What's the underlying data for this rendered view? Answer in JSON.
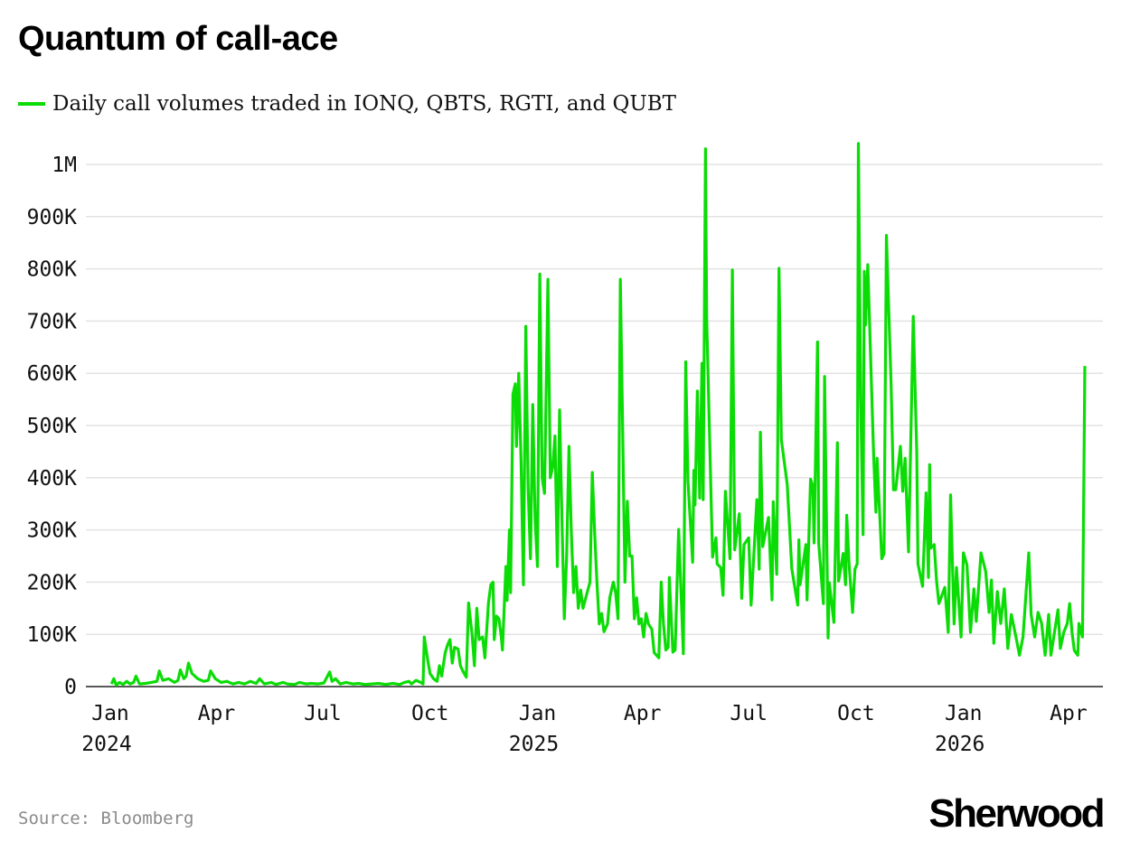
{
  "title": "Quantum of call-ace",
  "source": "Source: Bloomberg",
  "logo": "Sherwood",
  "chart_data": {
    "type": "line",
    "title": "Quantum of call-ace",
    "xlabel": "",
    "ylabel": "",
    "x_units": "days since 2024-01-01",
    "y_units": "thousands of contracts",
    "ylim": [
      0,
      1000
    ],
    "xlim": [
      -20,
      850
    ],
    "grid": true,
    "legend_position": "top-left",
    "color": "#0bdc06",
    "yticks": [
      {
        "value": 0,
        "label": "0"
      },
      {
        "value": 100,
        "label": "100K"
      },
      {
        "value": 200,
        "label": "200K"
      },
      {
        "value": 300,
        "label": "300K"
      },
      {
        "value": 400,
        "label": "400K"
      },
      {
        "value": 500,
        "label": "500K"
      },
      {
        "value": 600,
        "label": "600K"
      },
      {
        "value": 700,
        "label": "700K"
      },
      {
        "value": 800,
        "label": "800K"
      },
      {
        "value": 900,
        "label": "900K"
      },
      {
        "value": 1000,
        "label": "1M"
      }
    ],
    "xticks": [
      {
        "value": 0,
        "label": "Jan",
        "year": "2024"
      },
      {
        "value": 91,
        "label": "Apr",
        "year": ""
      },
      {
        "value": 182,
        "label": "Jul",
        "year": ""
      },
      {
        "value": 274,
        "label": "Oct",
        "year": ""
      },
      {
        "value": 366,
        "label": "Jan",
        "year": "2025"
      },
      {
        "value": 456,
        "label": "Apr",
        "year": ""
      },
      {
        "value": 547,
        "label": "Jul",
        "year": ""
      },
      {
        "value": 639,
        "label": "Oct",
        "year": ""
      },
      {
        "value": 731,
        "label": "Jan",
        "year": "2026"
      },
      {
        "value": 821,
        "label": "Apr",
        "year": ""
      }
    ],
    "series": [
      {
        "name": "Daily call volumes traded in IONQ, QBTS, RGTI, and QUBT",
        "points": [
          [
            1,
            5
          ],
          [
            3,
            15
          ],
          [
            5,
            3
          ],
          [
            8,
            8
          ],
          [
            11,
            4
          ],
          [
            14,
            10
          ],
          [
            17,
            5
          ],
          [
            20,
            8
          ],
          [
            22,
            20
          ],
          [
            25,
            5
          ],
          [
            30,
            6
          ],
          [
            35,
            8
          ],
          [
            40,
            10
          ],
          [
            42,
            30
          ],
          [
            45,
            12
          ],
          [
            50,
            15
          ],
          [
            55,
            8
          ],
          [
            58,
            12
          ],
          [
            60,
            32
          ],
          [
            63,
            15
          ],
          [
            65,
            20
          ],
          [
            67,
            45
          ],
          [
            70,
            25
          ],
          [
            75,
            15
          ],
          [
            80,
            10
          ],
          [
            84,
            12
          ],
          [
            86,
            30
          ],
          [
            90,
            15
          ],
          [
            95,
            8
          ],
          [
            100,
            10
          ],
          [
            105,
            5
          ],
          [
            110,
            8
          ],
          [
            115,
            5
          ],
          [
            120,
            10
          ],
          [
            125,
            6
          ],
          [
            128,
            15
          ],
          [
            132,
            5
          ],
          [
            138,
            8
          ],
          [
            142,
            4
          ],
          [
            148,
            8
          ],
          [
            152,
            5
          ],
          [
            158,
            4
          ],
          [
            162,
            8
          ],
          [
            168,
            5
          ],
          [
            172,
            6
          ],
          [
            178,
            5
          ],
          [
            183,
            7
          ],
          [
            188,
            28
          ],
          [
            190,
            10
          ],
          [
            193,
            15
          ],
          [
            197,
            5
          ],
          [
            202,
            8
          ],
          [
            208,
            5
          ],
          [
            213,
            6
          ],
          [
            218,
            4
          ],
          [
            224,
            5
          ],
          [
            230,
            6
          ],
          [
            236,
            4
          ],
          [
            242,
            6
          ],
          [
            248,
            4
          ],
          [
            252,
            8
          ],
          [
            256,
            10
          ],
          [
            258,
            5
          ],
          [
            262,
            12
          ],
          [
            266,
            8
          ],
          [
            268,
            5
          ],
          [
            269,
            95
          ],
          [
            272,
            50
          ],
          [
            274,
            25
          ],
          [
            277,
            15
          ],
          [
            280,
            10
          ],
          [
            282,
            40
          ],
          [
            284,
            20
          ],
          [
            287,
            65
          ],
          [
            289,
            80
          ],
          [
            291,
            90
          ],
          [
            293,
            45
          ],
          [
            295,
            75
          ],
          [
            298,
            72
          ],
          [
            300,
            40
          ],
          [
            302,
            30
          ],
          [
            305,
            18
          ],
          [
            307,
            160
          ],
          [
            310,
            100
          ],
          [
            312,
            40
          ],
          [
            314,
            150
          ],
          [
            316,
            90
          ],
          [
            319,
            95
          ],
          [
            321,
            55
          ],
          [
            324,
            160
          ],
          [
            326,
            195
          ],
          [
            328,
            200
          ],
          [
            329,
            90
          ],
          [
            331,
            135
          ],
          [
            333,
            130
          ],
          [
            335,
            95
          ],
          [
            336,
            70
          ],
          [
            339,
            230
          ],
          [
            340,
            165
          ],
          [
            342,
            300
          ],
          [
            343,
            180
          ],
          [
            345,
            560
          ],
          [
            347,
            580
          ],
          [
            348,
            460
          ],
          [
            350,
            600
          ],
          [
            352,
            430
          ],
          [
            354,
            195
          ],
          [
            356,
            690
          ],
          [
            358,
            380
          ],
          [
            360,
            245
          ],
          [
            362,
            540
          ],
          [
            364,
            320
          ],
          [
            366,
            230
          ],
          [
            368,
            790
          ],
          [
            370,
            400
          ],
          [
            372,
            370
          ],
          [
            375,
            780
          ],
          [
            377,
            400
          ],
          [
            379,
            420
          ],
          [
            381,
            480
          ],
          [
            383,
            230
          ],
          [
            385,
            530
          ],
          [
            387,
            320
          ],
          [
            389,
            130
          ],
          [
            391,
            250
          ],
          [
            393,
            460
          ],
          [
            395,
            300
          ],
          [
            397,
            180
          ],
          [
            399,
            230
          ],
          [
            401,
            150
          ],
          [
            403,
            185
          ],
          [
            405,
            150
          ],
          [
            408,
            175
          ],
          [
            411,
            200
          ],
          [
            413,
            410
          ],
          [
            415,
            295
          ],
          [
            417,
            200
          ],
          [
            419,
            120
          ],
          [
            421,
            140
          ],
          [
            423,
            105
          ],
          [
            426,
            120
          ],
          [
            428,
            170
          ],
          [
            431,
            200
          ],
          [
            433,
            180
          ],
          [
            435,
            130
          ],
          [
            437,
            780
          ],
          [
            439,
            500
          ],
          [
            441,
            200
          ],
          [
            443,
            355
          ],
          [
            445,
            250
          ],
          [
            447,
            250
          ],
          [
            449,
            130
          ],
          [
            451,
            170
          ],
          [
            453,
            120
          ],
          [
            455,
            130
          ],
          [
            457,
            95
          ],
          [
            459,
            140
          ],
          [
            461,
            120
          ],
          [
            464,
            110
          ],
          [
            466,
            65
          ],
          [
            468,
            60
          ],
          [
            470,
            55
          ],
          [
            472,
            200
          ],
          [
            474,
            120
          ],
          [
            476,
            70
          ],
          [
            478,
            75
          ],
          [
            479,
            209
          ],
          [
            482,
            66
          ],
          [
            484,
            70
          ],
          [
            487,
            301
          ],
          [
            491,
            63
          ],
          [
            493,
            622
          ],
          [
            495,
            394
          ],
          [
            499,
            238
          ],
          [
            500,
            414
          ],
          [
            501,
            348
          ],
          [
            503,
            566
          ],
          [
            505,
            361
          ],
          [
            507,
            619
          ],
          [
            508,
            358
          ],
          [
            510,
            1030
          ],
          [
            511,
            705
          ],
          [
            516,
            248
          ],
          [
            519,
            285
          ],
          [
            520,
            235
          ],
          [
            523,
            228
          ],
          [
            525,
            175
          ],
          [
            527,
            374
          ],
          [
            531,
            245
          ],
          [
            533,
            798
          ],
          [
            535,
            262
          ],
          [
            539,
            331
          ],
          [
            541,
            169
          ],
          [
            543,
            272
          ],
          [
            547,
            285
          ],
          [
            549,
            156
          ],
          [
            554,
            358
          ],
          [
            556,
            225
          ],
          [
            557,
            487
          ],
          [
            559,
            268
          ],
          [
            564,
            324
          ],
          [
            567,
            166
          ],
          [
            568,
            354
          ],
          [
            571,
            215
          ],
          [
            573,
            801
          ],
          [
            575,
            473
          ],
          [
            580,
            387
          ],
          [
            584,
            225
          ],
          [
            589,
            156
          ],
          [
            590,
            281
          ],
          [
            591,
            195
          ],
          [
            596,
            272
          ],
          [
            597,
            166
          ],
          [
            600,
            397
          ],
          [
            602,
            384
          ],
          [
            603,
            275
          ],
          [
            606,
            660
          ],
          [
            607,
            275
          ],
          [
            611,
            159
          ],
          [
            612,
            594
          ],
          [
            615,
            93
          ],
          [
            616,
            199
          ],
          [
            620,
            123
          ],
          [
            621,
            232
          ],
          [
            623,
            467
          ],
          [
            624,
            202
          ],
          [
            628,
            255
          ],
          [
            630,
            195
          ],
          [
            631,
            328
          ],
          [
            633,
            235
          ],
          [
            636,
            142
          ],
          [
            638,
            225
          ],
          [
            640,
            235
          ],
          [
            641,
            1040
          ],
          [
            643,
            546
          ],
          [
            645,
            291
          ],
          [
            646,
            795
          ],
          [
            647,
            692
          ],
          [
            649,
            808
          ],
          [
            654,
            447
          ],
          [
            656,
            334
          ],
          [
            657,
            437
          ],
          [
            661,
            245
          ],
          [
            663,
            255
          ],
          [
            665,
            864
          ],
          [
            669,
            579
          ],
          [
            671,
            377
          ],
          [
            673,
            377
          ],
          [
            677,
            460
          ],
          [
            679,
            374
          ],
          [
            681,
            437
          ],
          [
            684,
            258
          ],
          [
            688,
            709
          ],
          [
            691,
            447
          ],
          [
            692,
            235
          ],
          [
            696,
            192
          ],
          [
            699,
            371
          ],
          [
            701,
            209
          ],
          [
            702,
            425
          ],
          [
            703,
            265
          ],
          [
            706,
            272
          ],
          [
            708,
            202
          ],
          [
            710,
            159
          ],
          [
            715,
            190
          ],
          [
            718,
            104
          ],
          [
            720,
            367
          ],
          [
            723,
            120
          ],
          [
            725,
            228
          ],
          [
            729,
            95
          ],
          [
            731,
            256
          ],
          [
            734,
            233
          ],
          [
            737,
            104
          ],
          [
            740,
            187
          ],
          [
            742,
            125
          ],
          [
            746,
            256
          ],
          [
            750,
            221
          ],
          [
            753,
            142
          ],
          [
            755,
            204
          ],
          [
            757,
            83
          ],
          [
            760,
            182
          ],
          [
            763,
            121
          ],
          [
            766,
            187
          ],
          [
            769,
            73
          ],
          [
            772,
            138
          ],
          [
            776,
            95
          ],
          [
            779,
            60
          ],
          [
            782,
            95
          ],
          [
            787,
            256
          ],
          [
            789,
            138
          ],
          [
            792,
            95
          ],
          [
            795,
            142
          ],
          [
            798,
            121
          ],
          [
            801,
            60
          ],
          [
            804,
            138
          ],
          [
            806,
            60
          ],
          [
            809,
            104
          ],
          [
            812,
            147
          ],
          [
            814,
            73
          ],
          [
            817,
            104
          ],
          [
            820,
            121
          ],
          [
            822,
            159
          ],
          [
            824,
            104
          ],
          [
            826,
            69
          ],
          [
            829,
            60
          ],
          [
            830,
            121
          ],
          [
            833,
            95
          ],
          [
            835,
            614
          ]
        ]
      }
    ]
  }
}
